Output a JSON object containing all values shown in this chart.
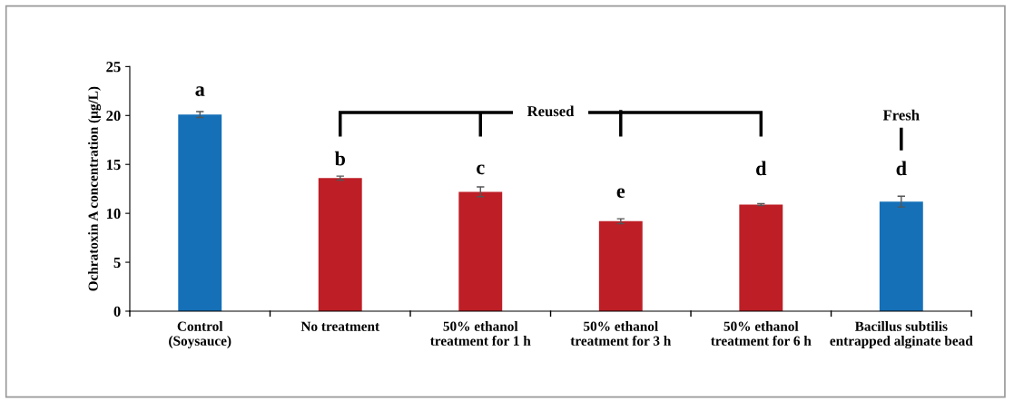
{
  "chart_data": {
    "type": "bar",
    "ylabel": "Ochratoxin A concentration (μg/L)",
    "categories": [
      "Control\n(Soysauce)",
      "No treatment",
      "50% ethanol\ntreatment for 1 h",
      "50% ethanol\ntreatment for 3 h",
      "50% ethanol\ntreatment for 6 h",
      "Bacillus subtilis\nentrapped alginate bead"
    ],
    "values": [
      20.1,
      13.6,
      12.2,
      9.2,
      10.9,
      11.2
    ],
    "errors": [
      0.3,
      0.2,
      0.5,
      0.25,
      0.1,
      0.55
    ],
    "colors": [
      "#1570b8",
      "#be1e26",
      "#be1e26",
      "#be1e26",
      "#be1e26",
      "#1570b8"
    ],
    "ylim": [
      0,
      25
    ],
    "yticks": [
      0,
      5,
      10,
      15,
      20,
      25
    ],
    "grid": false,
    "legend": false,
    "annotations": [
      "a",
      "b",
      "c",
      "e",
      "d",
      "d",
      "Reused",
      "Fresh"
    ]
  }
}
